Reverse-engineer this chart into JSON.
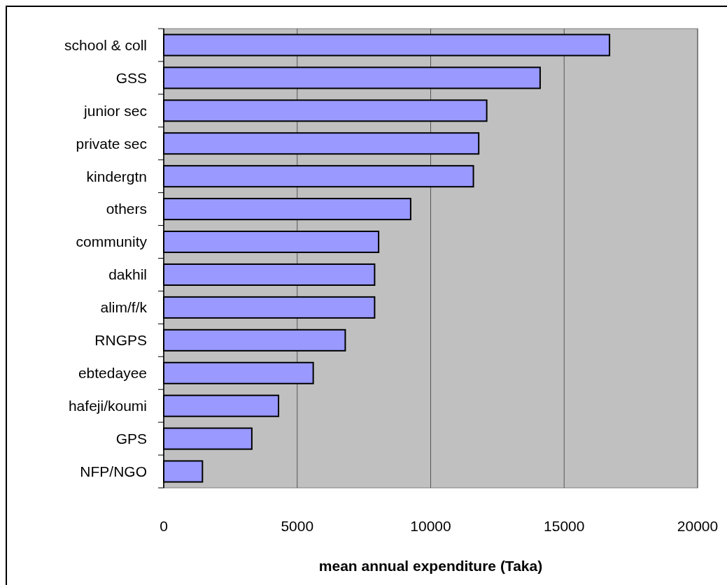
{
  "chart_data": {
    "type": "bar",
    "orientation": "horizontal",
    "xlabel": "mean annual expenditure (Taka)",
    "categories": [
      "school & coll",
      "GSS",
      "junior sec",
      "private sec",
      "kindergtn",
      "others",
      "community",
      "dakhil",
      "alim/f/k",
      "RNGPS",
      "ebtedayee",
      "hafeji/koumi",
      "GPS",
      "NFP/NGO"
    ],
    "values": [
      16700,
      14100,
      12100,
      11800,
      11600,
      9250,
      8050,
      7900,
      7900,
      6800,
      5600,
      4300,
      3300,
      1450
    ],
    "color": "#9999ff",
    "xlim": [
      0,
      20000
    ],
    "xticks": [
      0,
      5000,
      10000,
      15000,
      20000
    ],
    "grid": "x"
  }
}
